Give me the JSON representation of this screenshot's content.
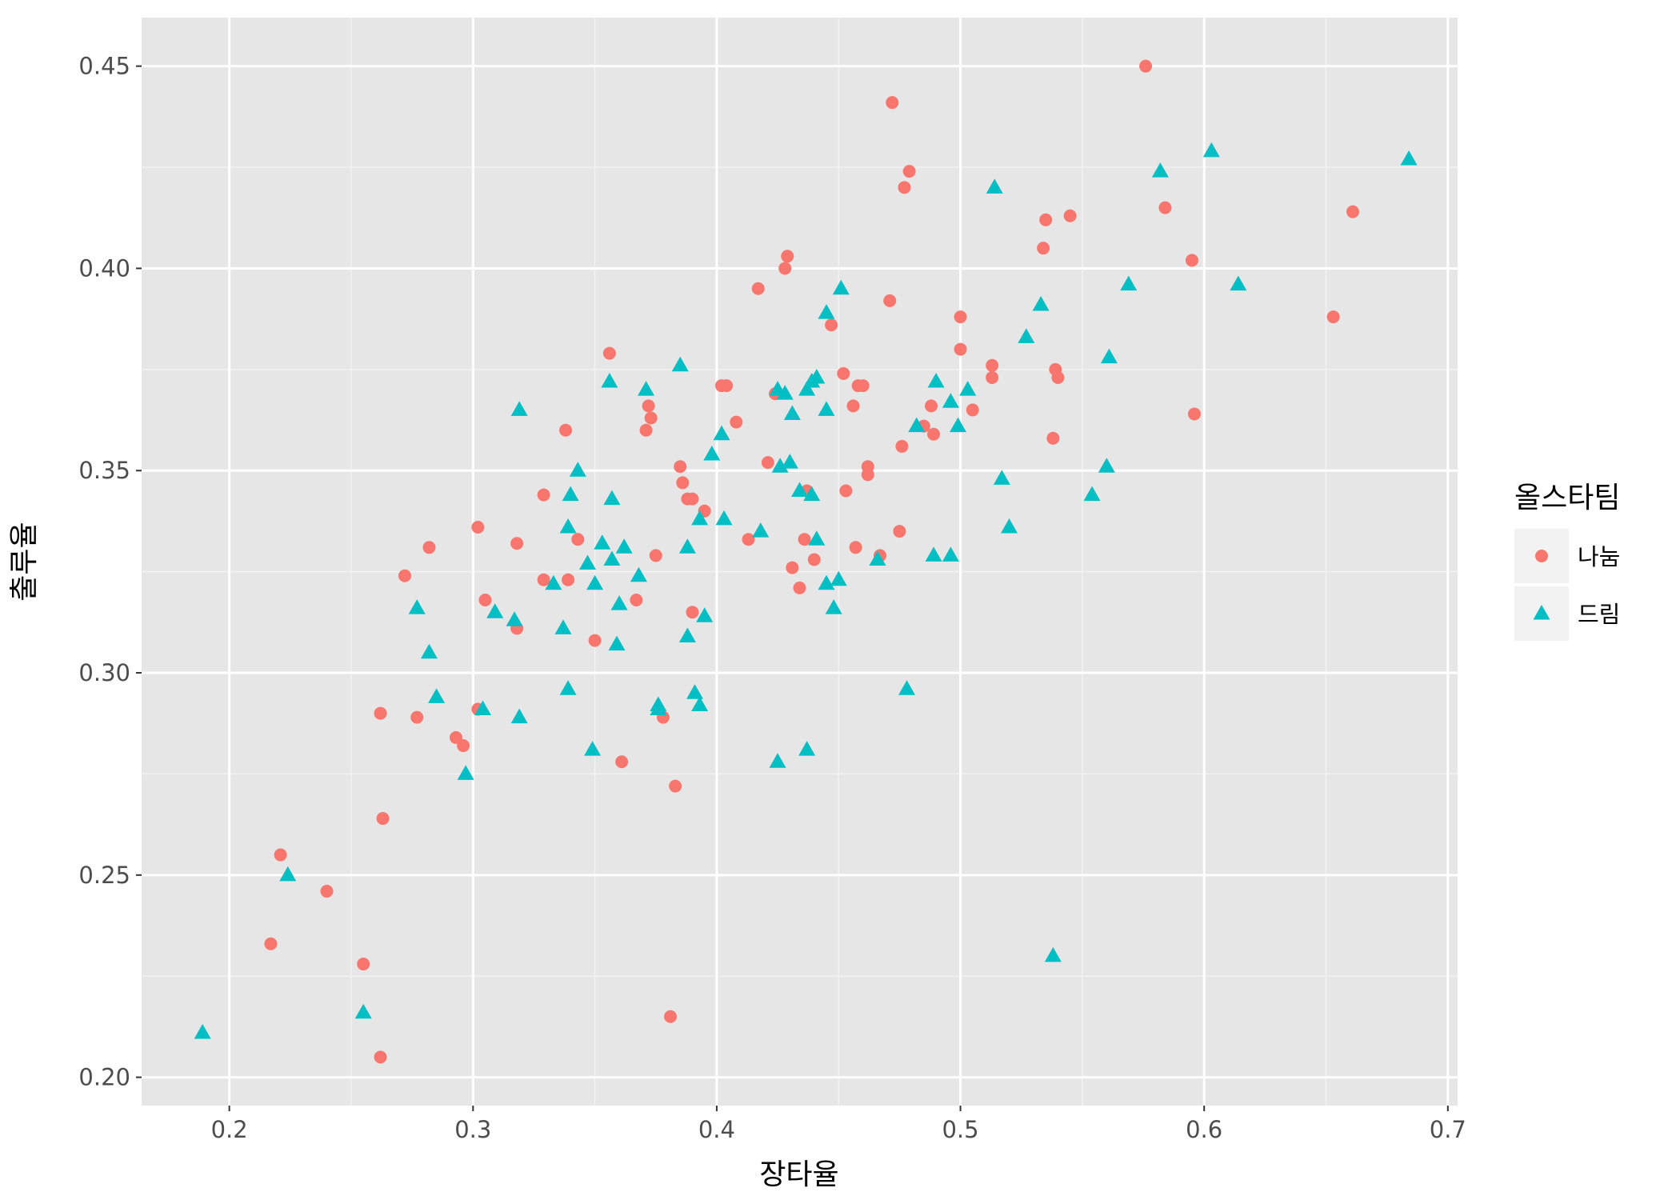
{
  "chart_data": {
    "type": "scatter",
    "xlabel": "장타율",
    "ylabel": "출루율",
    "xlim": [
      0.164,
      0.704
    ],
    "ylim": [
      0.193,
      0.462
    ],
    "x_ticks": [
      0.2,
      0.3,
      0.4,
      0.5,
      0.6,
      0.7
    ],
    "x_tick_labels": [
      "0.2",
      "0.3",
      "0.4",
      "0.5",
      "0.6",
      "0.7"
    ],
    "y_ticks": [
      0.2,
      0.25,
      0.3,
      0.35,
      0.4,
      0.45
    ],
    "y_tick_labels": [
      "0.20",
      "0.25",
      "0.30",
      "0.35",
      "0.40",
      "0.45"
    ],
    "grid": true,
    "background": "#e6e6e6",
    "legend": {
      "title": "올스타팀",
      "placement": "right"
    },
    "series": [
      {
        "name": "나눔",
        "shape": "circle",
        "color": "#f8766d",
        "points": [
          [
            0.576,
            0.45
          ],
          [
            0.472,
            0.441
          ],
          [
            0.479,
            0.424
          ],
          [
            0.477,
            0.42
          ],
          [
            0.584,
            0.415
          ],
          [
            0.661,
            0.414
          ],
          [
            0.545,
            0.413
          ],
          [
            0.535,
            0.412
          ],
          [
            0.534,
            0.405
          ],
          [
            0.429,
            0.403
          ],
          [
            0.595,
            0.402
          ],
          [
            0.428,
            0.4
          ],
          [
            0.417,
            0.395
          ],
          [
            0.471,
            0.392
          ],
          [
            0.5,
            0.388
          ],
          [
            0.653,
            0.388
          ],
          [
            0.447,
            0.386
          ],
          [
            0.5,
            0.38
          ],
          [
            0.356,
            0.379
          ],
          [
            0.513,
            0.376
          ],
          [
            0.539,
            0.375
          ],
          [
            0.452,
            0.374
          ],
          [
            0.513,
            0.373
          ],
          [
            0.54,
            0.373
          ],
          [
            0.402,
            0.371
          ],
          [
            0.404,
            0.371
          ],
          [
            0.458,
            0.371
          ],
          [
            0.46,
            0.371
          ],
          [
            0.424,
            0.369
          ],
          [
            0.372,
            0.366
          ],
          [
            0.456,
            0.366
          ],
          [
            0.488,
            0.366
          ],
          [
            0.505,
            0.365
          ],
          [
            0.596,
            0.364
          ],
          [
            0.373,
            0.363
          ],
          [
            0.408,
            0.362
          ],
          [
            0.485,
            0.361
          ],
          [
            0.338,
            0.36
          ],
          [
            0.371,
            0.36
          ],
          [
            0.489,
            0.359
          ],
          [
            0.538,
            0.358
          ],
          [
            0.476,
            0.356
          ],
          [
            0.421,
            0.352
          ],
          [
            0.385,
            0.351
          ],
          [
            0.462,
            0.351
          ],
          [
            0.462,
            0.349
          ],
          [
            0.386,
            0.347
          ],
          [
            0.453,
            0.345
          ],
          [
            0.437,
            0.345
          ],
          [
            0.329,
            0.344
          ],
          [
            0.388,
            0.343
          ],
          [
            0.39,
            0.343
          ],
          [
            0.395,
            0.34
          ],
          [
            0.302,
            0.336
          ],
          [
            0.475,
            0.335
          ],
          [
            0.343,
            0.333
          ],
          [
            0.413,
            0.333
          ],
          [
            0.436,
            0.333
          ],
          [
            0.318,
            0.332
          ],
          [
            0.282,
            0.331
          ],
          [
            0.457,
            0.331
          ],
          [
            0.375,
            0.329
          ],
          [
            0.467,
            0.329
          ],
          [
            0.44,
            0.328
          ],
          [
            0.431,
            0.326
          ],
          [
            0.272,
            0.324
          ],
          [
            0.329,
            0.323
          ],
          [
            0.339,
            0.323
          ],
          [
            0.434,
            0.321
          ],
          [
            0.305,
            0.318
          ],
          [
            0.367,
            0.318
          ],
          [
            0.39,
            0.315
          ],
          [
            0.318,
            0.311
          ],
          [
            0.35,
            0.308
          ],
          [
            0.262,
            0.29
          ],
          [
            0.302,
            0.291
          ],
          [
            0.277,
            0.289
          ],
          [
            0.378,
            0.289
          ],
          [
            0.293,
            0.284
          ],
          [
            0.296,
            0.282
          ],
          [
            0.361,
            0.278
          ],
          [
            0.383,
            0.272
          ],
          [
            0.263,
            0.264
          ],
          [
            0.221,
            0.255
          ],
          [
            0.24,
            0.246
          ],
          [
            0.217,
            0.233
          ],
          [
            0.255,
            0.228
          ],
          [
            0.381,
            0.215
          ],
          [
            0.262,
            0.205
          ]
        ]
      },
      {
        "name": "드림",
        "shape": "triangle",
        "color": "#00bfc4",
        "points": [
          [
            0.603,
            0.429
          ],
          [
            0.684,
            0.427
          ],
          [
            0.582,
            0.424
          ],
          [
            0.514,
            0.42
          ],
          [
            0.569,
            0.396
          ],
          [
            0.614,
            0.396
          ],
          [
            0.451,
            0.395
          ],
          [
            0.533,
            0.391
          ],
          [
            0.445,
            0.389
          ],
          [
            0.527,
            0.383
          ],
          [
            0.561,
            0.378
          ],
          [
            0.385,
            0.376
          ],
          [
            0.441,
            0.373
          ],
          [
            0.439,
            0.372
          ],
          [
            0.356,
            0.372
          ],
          [
            0.49,
            0.372
          ],
          [
            0.371,
            0.37
          ],
          [
            0.425,
            0.37
          ],
          [
            0.428,
            0.369
          ],
          [
            0.437,
            0.37
          ],
          [
            0.503,
            0.37
          ],
          [
            0.496,
            0.367
          ],
          [
            0.319,
            0.365
          ],
          [
            0.445,
            0.365
          ],
          [
            0.431,
            0.364
          ],
          [
            0.482,
            0.361
          ],
          [
            0.499,
            0.361
          ],
          [
            0.402,
            0.359
          ],
          [
            0.398,
            0.354
          ],
          [
            0.43,
            0.352
          ],
          [
            0.426,
            0.351
          ],
          [
            0.56,
            0.351
          ],
          [
            0.343,
            0.35
          ],
          [
            0.517,
            0.348
          ],
          [
            0.434,
            0.345
          ],
          [
            0.439,
            0.344
          ],
          [
            0.34,
            0.344
          ],
          [
            0.357,
            0.343
          ],
          [
            0.554,
            0.344
          ],
          [
            0.393,
            0.338
          ],
          [
            0.403,
            0.338
          ],
          [
            0.52,
            0.336
          ],
          [
            0.339,
            0.336
          ],
          [
            0.418,
            0.335
          ],
          [
            0.441,
            0.333
          ],
          [
            0.353,
            0.332
          ],
          [
            0.362,
            0.331
          ],
          [
            0.388,
            0.331
          ],
          [
            0.357,
            0.328
          ],
          [
            0.347,
            0.327
          ],
          [
            0.466,
            0.328
          ],
          [
            0.489,
            0.329
          ],
          [
            0.496,
            0.329
          ],
          [
            0.368,
            0.324
          ],
          [
            0.45,
            0.323
          ],
          [
            0.333,
            0.322
          ],
          [
            0.35,
            0.322
          ],
          [
            0.445,
            0.322
          ],
          [
            0.277,
            0.316
          ],
          [
            0.36,
            0.317
          ],
          [
            0.448,
            0.316
          ],
          [
            0.309,
            0.315
          ],
          [
            0.395,
            0.314
          ],
          [
            0.317,
            0.313
          ],
          [
            0.337,
            0.311
          ],
          [
            0.388,
            0.309
          ],
          [
            0.359,
            0.307
          ],
          [
            0.282,
            0.305
          ],
          [
            0.339,
            0.296
          ],
          [
            0.391,
            0.295
          ],
          [
            0.478,
            0.296
          ],
          [
            0.285,
            0.294
          ],
          [
            0.393,
            0.292
          ],
          [
            0.376,
            0.292
          ],
          [
            0.304,
            0.291
          ],
          [
            0.376,
            0.291
          ],
          [
            0.319,
            0.289
          ],
          [
            0.349,
            0.281
          ],
          [
            0.437,
            0.281
          ],
          [
            0.425,
            0.278
          ],
          [
            0.297,
            0.275
          ],
          [
            0.224,
            0.25
          ],
          [
            0.538,
            0.23
          ],
          [
            0.255,
            0.216
          ],
          [
            0.189,
            0.211
          ]
        ]
      }
    ]
  }
}
